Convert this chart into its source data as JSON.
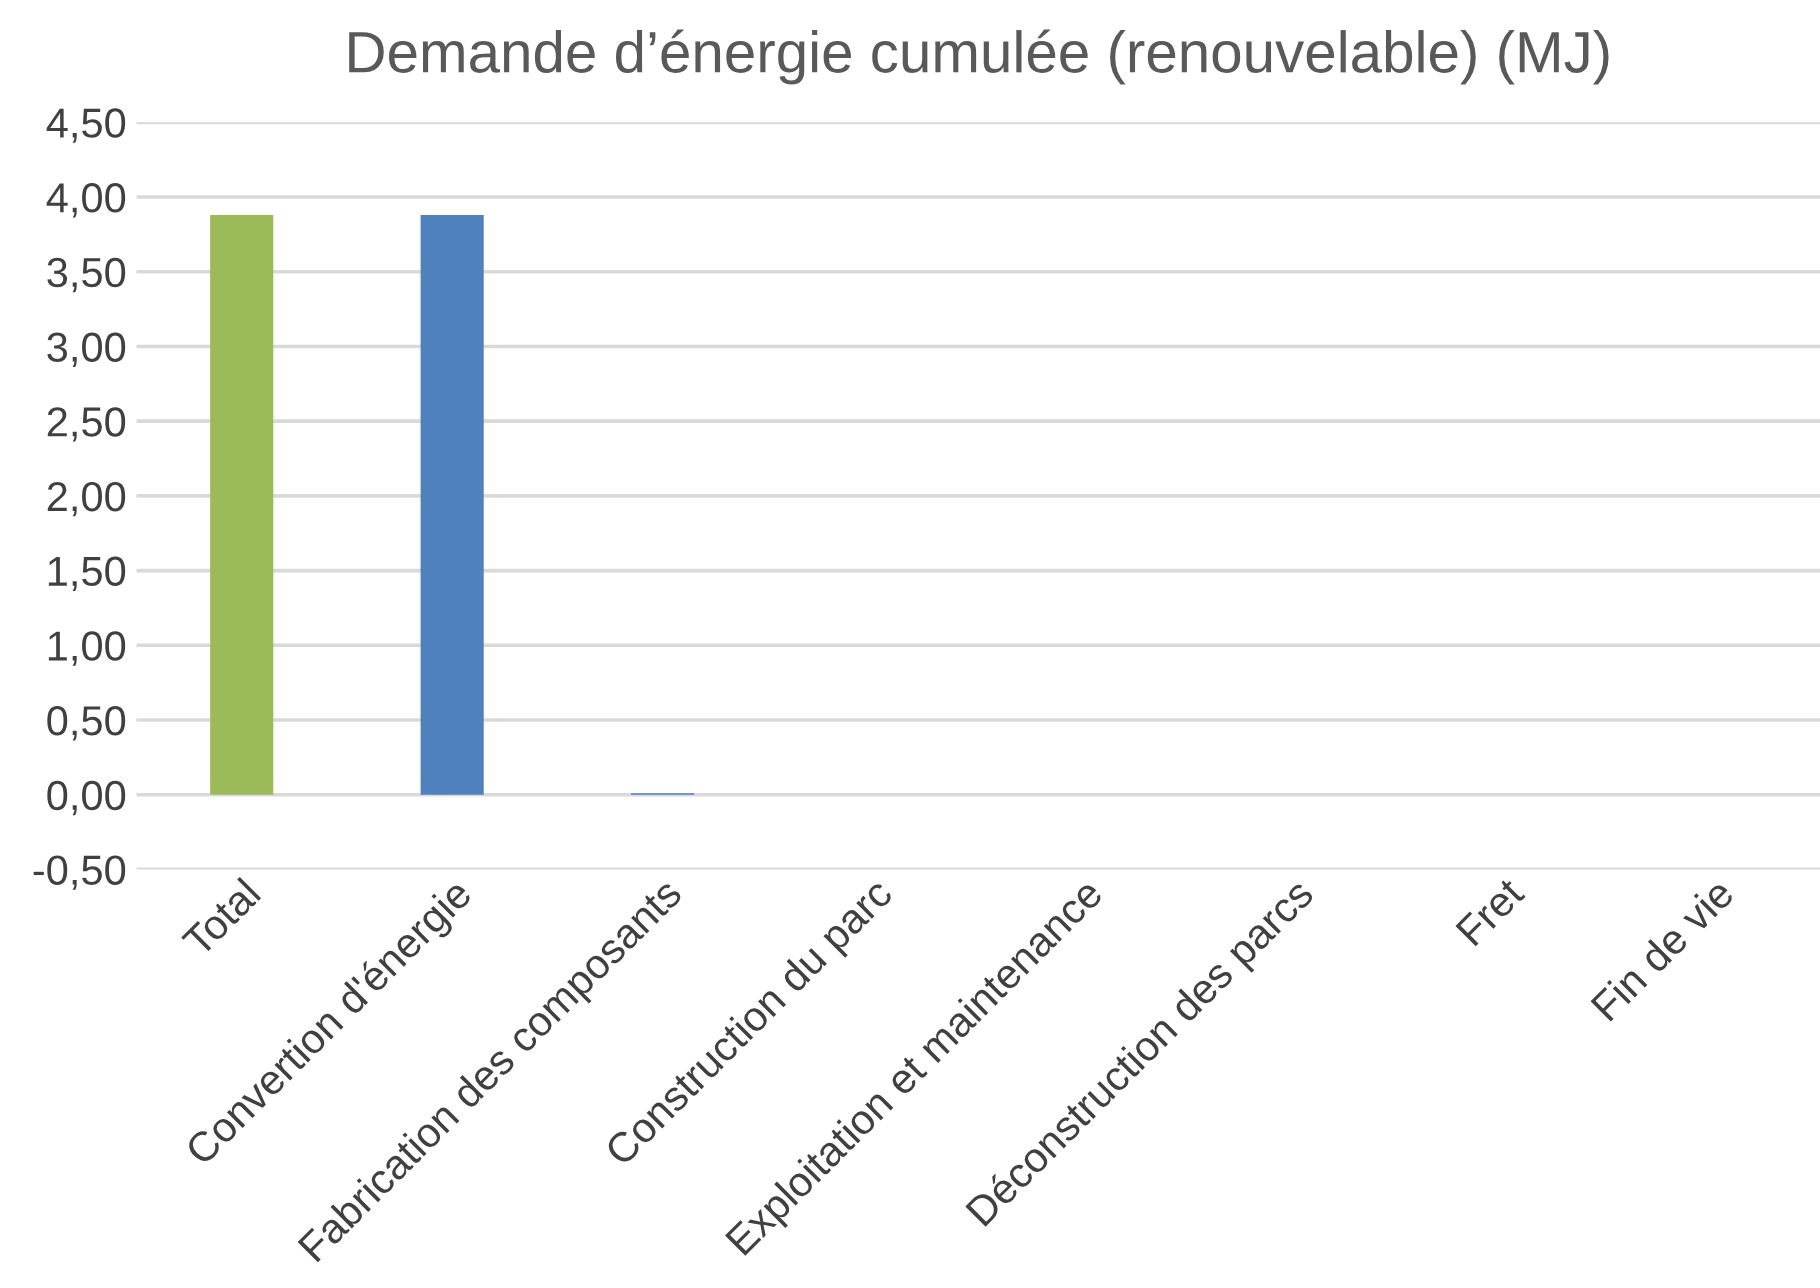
{
  "chart_data": {
    "type": "bar",
    "title": "Demande d’énergie cumulée (renouvelable) (MJ)",
    "categories": [
      "Total",
      "Convertion d'énergie",
      "Fabrication des composants",
      "Construction du parc",
      "Exploitation et maintenance",
      "Déconstruction des parcs",
      "Fret",
      "Fin de vie"
    ],
    "values": [
      3.88,
      3.88,
      0.01,
      0,
      0,
      0,
      0,
      0
    ],
    "colors": [
      "#9bbb59",
      "#4f81bd",
      "#4f81bd",
      "#4f81bd",
      "#4f81bd",
      "#4f81bd",
      "#4f81bd",
      "#4f81bd"
    ],
    "ylim": [
      -0.5,
      4.5
    ],
    "yticks": [
      {
        "value": -0.5,
        "label": "-0,50"
      },
      {
        "value": 0,
        "label": "0,00"
      },
      {
        "value": 0.5,
        "label": "0,50"
      },
      {
        "value": 1,
        "label": "1,00"
      },
      {
        "value": 1.5,
        "label": "1,50"
      },
      {
        "value": 2,
        "label": "2,00"
      },
      {
        "value": 2.5,
        "label": "2,50"
      },
      {
        "value": 3,
        "label": "3,00"
      },
      {
        "value": 3.5,
        "label": "3,50"
      },
      {
        "value": 4,
        "label": "4,00"
      },
      {
        "value": 4.5,
        "label": "4,50"
      }
    ],
    "grid": "y"
  }
}
